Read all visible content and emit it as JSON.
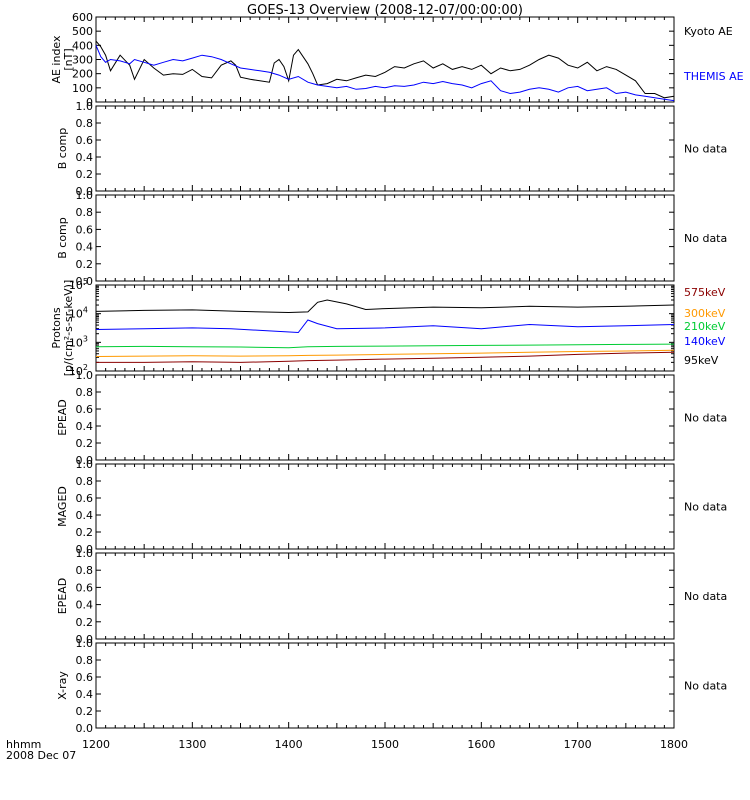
{
  "title": "GOES-13 Overview (2008-12-07/00:00:00)",
  "footer": {
    "line1": "hhmm",
    "line2": "2008 Dec 07"
  },
  "no_data_label": "No data",
  "chart_data": [
    {
      "id": "ae",
      "type": "line",
      "ylabel": [
        "AE index",
        "[nT]"
      ],
      "ylim": [
        0,
        600
      ],
      "yticks": [
        "0",
        "100",
        "200",
        "300",
        "400",
        "500",
        "600"
      ],
      "xlim": [
        1200,
        1800
      ],
      "xtick_labels": [
        "1200",
        "1300",
        "1400",
        "1500",
        "1600",
        "1700",
        "1800"
      ],
      "series": [
        {
          "name": "Kyoto AE",
          "color": "#000000",
          "x": [
            1200,
            1205,
            1210,
            1215,
            1225,
            1235,
            1240,
            1250,
            1260,
            1270,
            1280,
            1290,
            1300,
            1310,
            1320,
            1330,
            1340,
            1345,
            1350,
            1360,
            1370,
            1380,
            1385,
            1390,
            1395,
            1400,
            1405,
            1410,
            1415,
            1420,
            1425,
            1430,
            1440,
            1450,
            1460,
            1470,
            1480,
            1490,
            1500,
            1510,
            1520,
            1530,
            1540,
            1550,
            1560,
            1570,
            1580,
            1590,
            1600,
            1610,
            1620,
            1630,
            1640,
            1650,
            1660,
            1670,
            1680,
            1690,
            1700,
            1710,
            1720,
            1730,
            1740,
            1750,
            1760,
            1770,
            1780,
            1790,
            1800
          ],
          "y": [
            430,
            390,
            330,
            220,
            330,
            260,
            160,
            300,
            240,
            190,
            200,
            195,
            230,
            180,
            170,
            260,
            290,
            260,
            175,
            160,
            150,
            140,
            275,
            300,
            250,
            150,
            330,
            370,
            320,
            270,
            200,
            120,
            130,
            160,
            150,
            170,
            190,
            180,
            210,
            250,
            240,
            270,
            290,
            240,
            270,
            230,
            250,
            230,
            260,
            200,
            240,
            220,
            230,
            260,
            300,
            330,
            310,
            260,
            240,
            280,
            220,
            250,
            230,
            190,
            150,
            60,
            60,
            30,
            40
          ]
        },
        {
          "name": "THEMIS AE",
          "color": "#0000ff",
          "x": [
            1200,
            1205,
            1210,
            1215,
            1225,
            1235,
            1240,
            1250,
            1260,
            1270,
            1280,
            1290,
            1300,
            1310,
            1320,
            1330,
            1340,
            1350,
            1360,
            1370,
            1380,
            1390,
            1400,
            1410,
            1420,
            1425,
            1430,
            1440,
            1450,
            1460,
            1470,
            1480,
            1490,
            1500,
            1510,
            1520,
            1530,
            1540,
            1550,
            1560,
            1570,
            1580,
            1590,
            1600,
            1610,
            1620,
            1630,
            1640,
            1650,
            1660,
            1670,
            1680,
            1690,
            1700,
            1710,
            1720,
            1730,
            1740,
            1750,
            1760,
            1770,
            1780,
            1790,
            1800
          ],
          "y": [
            400,
            320,
            280,
            300,
            290,
            270,
            300,
            280,
            260,
            280,
            300,
            290,
            310,
            330,
            320,
            300,
            270,
            240,
            230,
            220,
            210,
            190,
            160,
            180,
            140,
            130,
            120,
            110,
            100,
            110,
            90,
            95,
            110,
            100,
            115,
            110,
            120,
            140,
            130,
            145,
            130,
            120,
            100,
            130,
            150,
            80,
            60,
            70,
            90,
            100,
            90,
            70,
            100,
            110,
            80,
            90,
            100,
            60,
            70,
            50,
            40,
            30,
            20,
            10
          ]
        }
      ]
    },
    {
      "id": "bcomp1",
      "type": "line",
      "ylabel": [
        "B comp"
      ],
      "ylim": [
        0,
        1
      ],
      "yticks": [
        "0.0",
        "0.2",
        "0.4",
        "0.6",
        "0.8",
        "1.0"
      ],
      "xlim": [
        1200,
        1800
      ],
      "series": []
    },
    {
      "id": "bcomp2",
      "type": "line",
      "ylabel": [
        "B comp"
      ],
      "ylim": [
        0,
        1
      ],
      "yticks": [
        "0.0",
        "0.2",
        "0.4",
        "0.6",
        "0.8",
        "1.0"
      ],
      "xlim": [
        1200,
        1800
      ],
      "series": []
    },
    {
      "id": "protons",
      "type": "line",
      "scale": "log",
      "ylabel": [
        "Protons",
        "[p/(cm²-s-sr-keV)]"
      ],
      "ylim": [
        100,
        100000
      ],
      "yticks": [
        {
          "value": 100,
          "base": "10",
          "exp": "2"
        },
        {
          "value": 1000,
          "base": "10",
          "exp": "3"
        },
        {
          "value": 10000,
          "base": "10",
          "exp": "4"
        },
        {
          "value": 100000,
          "base": "10",
          "exp": "5"
        }
      ],
      "xlim": [
        1200,
        1800
      ],
      "series": [
        {
          "name": "575keV",
          "color": "#8b0000",
          "x": [
            1200,
            1250,
            1300,
            1350,
            1400,
            1420,
            1450,
            1500,
            1550,
            1600,
            1650,
            1700,
            1750,
            1800
          ],
          "y": [
            200,
            200,
            210,
            200,
            220,
            230,
            240,
            260,
            280,
            300,
            330,
            380,
            420,
            450
          ]
        },
        {
          "name": "300keV",
          "color": "#ff9900",
          "x": [
            1200,
            1250,
            1300,
            1350,
            1400,
            1420,
            1450,
            1500,
            1550,
            1600,
            1650,
            1700,
            1750,
            1800
          ],
          "y": [
            320,
            330,
            340,
            330,
            340,
            350,
            360,
            380,
            400,
            420,
            450,
            480,
            500,
            530
          ]
        },
        {
          "name": "210keV",
          "color": "#00cc33",
          "x": [
            1200,
            1250,
            1300,
            1350,
            1400,
            1420,
            1450,
            1500,
            1550,
            1600,
            1650,
            1700,
            1750,
            1800
          ],
          "y": [
            700,
            720,
            700,
            690,
            650,
            700,
            720,
            740,
            760,
            780,
            800,
            820,
            850,
            870
          ]
        },
        {
          "name": "140keV",
          "color": "#0000ff",
          "x": [
            1200,
            1250,
            1300,
            1340,
            1380,
            1410,
            1420,
            1430,
            1450,
            1500,
            1550,
            1600,
            1650,
            1700,
            1750,
            1800
          ],
          "y": [
            2800,
            3000,
            3200,
            3000,
            2500,
            2200,
            6000,
            4500,
            3000,
            3200,
            3800,
            3000,
            4200,
            3500,
            3800,
            4200
          ]
        },
        {
          "name": "95keV",
          "color": "#000000",
          "x": [
            1200,
            1250,
            1300,
            1350,
            1400,
            1420,
            1430,
            1440,
            1460,
            1480,
            1500,
            1550,
            1600,
            1650,
            1700,
            1750,
            1800
          ],
          "y": [
            12000,
            13000,
            13500,
            12000,
            11000,
            11500,
            25000,
            30000,
            22000,
            14000,
            15000,
            17000,
            16000,
            18000,
            17000,
            18000,
            20000
          ]
        }
      ]
    },
    {
      "id": "epead1",
      "type": "line",
      "ylabel": [
        "EPEAD"
      ],
      "ylim": [
        0,
        1
      ],
      "yticks": [
        "0.0",
        "0.2",
        "0.4",
        "0.6",
        "0.8",
        "1.0"
      ],
      "xlim": [
        1200,
        1800
      ],
      "series": []
    },
    {
      "id": "maged",
      "type": "line",
      "ylabel": [
        "MAGED"
      ],
      "ylim": [
        0,
        1
      ],
      "yticks": [
        "0.0",
        "0.2",
        "0.4",
        "0.6",
        "0.8",
        "1.0"
      ],
      "xlim": [
        1200,
        1800
      ],
      "series": []
    },
    {
      "id": "epead2",
      "type": "line",
      "ylabel": [
        "EPEAD"
      ],
      "ylim": [
        0,
        1
      ],
      "yticks": [
        "0.0",
        "0.2",
        "0.4",
        "0.6",
        "0.8",
        "1.0"
      ],
      "xlim": [
        1200,
        1800
      ],
      "series": []
    },
    {
      "id": "xray",
      "type": "line",
      "ylabel": [
        "X-ray"
      ],
      "ylim": [
        0,
        1
      ],
      "yticks": [
        "0.0",
        "0.2",
        "0.4",
        "0.6",
        "0.8",
        "1.0"
      ],
      "xlim": [
        1200,
        1800
      ],
      "series": []
    }
  ]
}
